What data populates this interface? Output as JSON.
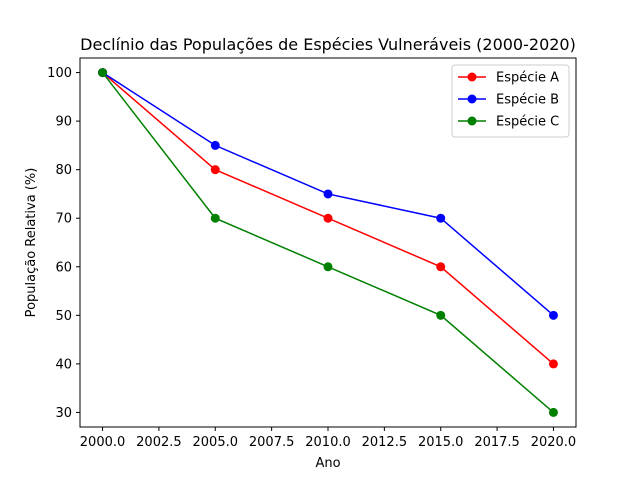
{
  "chart_data": {
    "type": "line",
    "title": "Declínio das Populações de Espécies Vulneráveis (2000-2020)",
    "xlabel": "Ano",
    "ylabel": "População Relativa (%)",
    "x": [
      2000,
      2005,
      2010,
      2015,
      2020
    ],
    "xlim": [
      1999,
      2021
    ],
    "ylim": [
      27,
      103
    ],
    "xticks": [
      "2000.0",
      "2002.5",
      "2005.0",
      "2007.5",
      "2010.0",
      "2012.5",
      "2015.0",
      "2017.5",
      "2020.0"
    ],
    "yticks": [
      "30",
      "40",
      "50",
      "60",
      "70",
      "80",
      "90",
      "100"
    ],
    "grid": false,
    "legend_position": "top-right",
    "series": [
      {
        "name": "Espécie A",
        "color": "#ff0000",
        "values": [
          100,
          80,
          70,
          60,
          40
        ]
      },
      {
        "name": "Espécie B",
        "color": "#0000ff",
        "values": [
          100,
          85,
          75,
          70,
          50
        ]
      },
      {
        "name": "Espécie C",
        "color": "#008000",
        "values": [
          100,
          70,
          60,
          50,
          30
        ]
      }
    ]
  }
}
